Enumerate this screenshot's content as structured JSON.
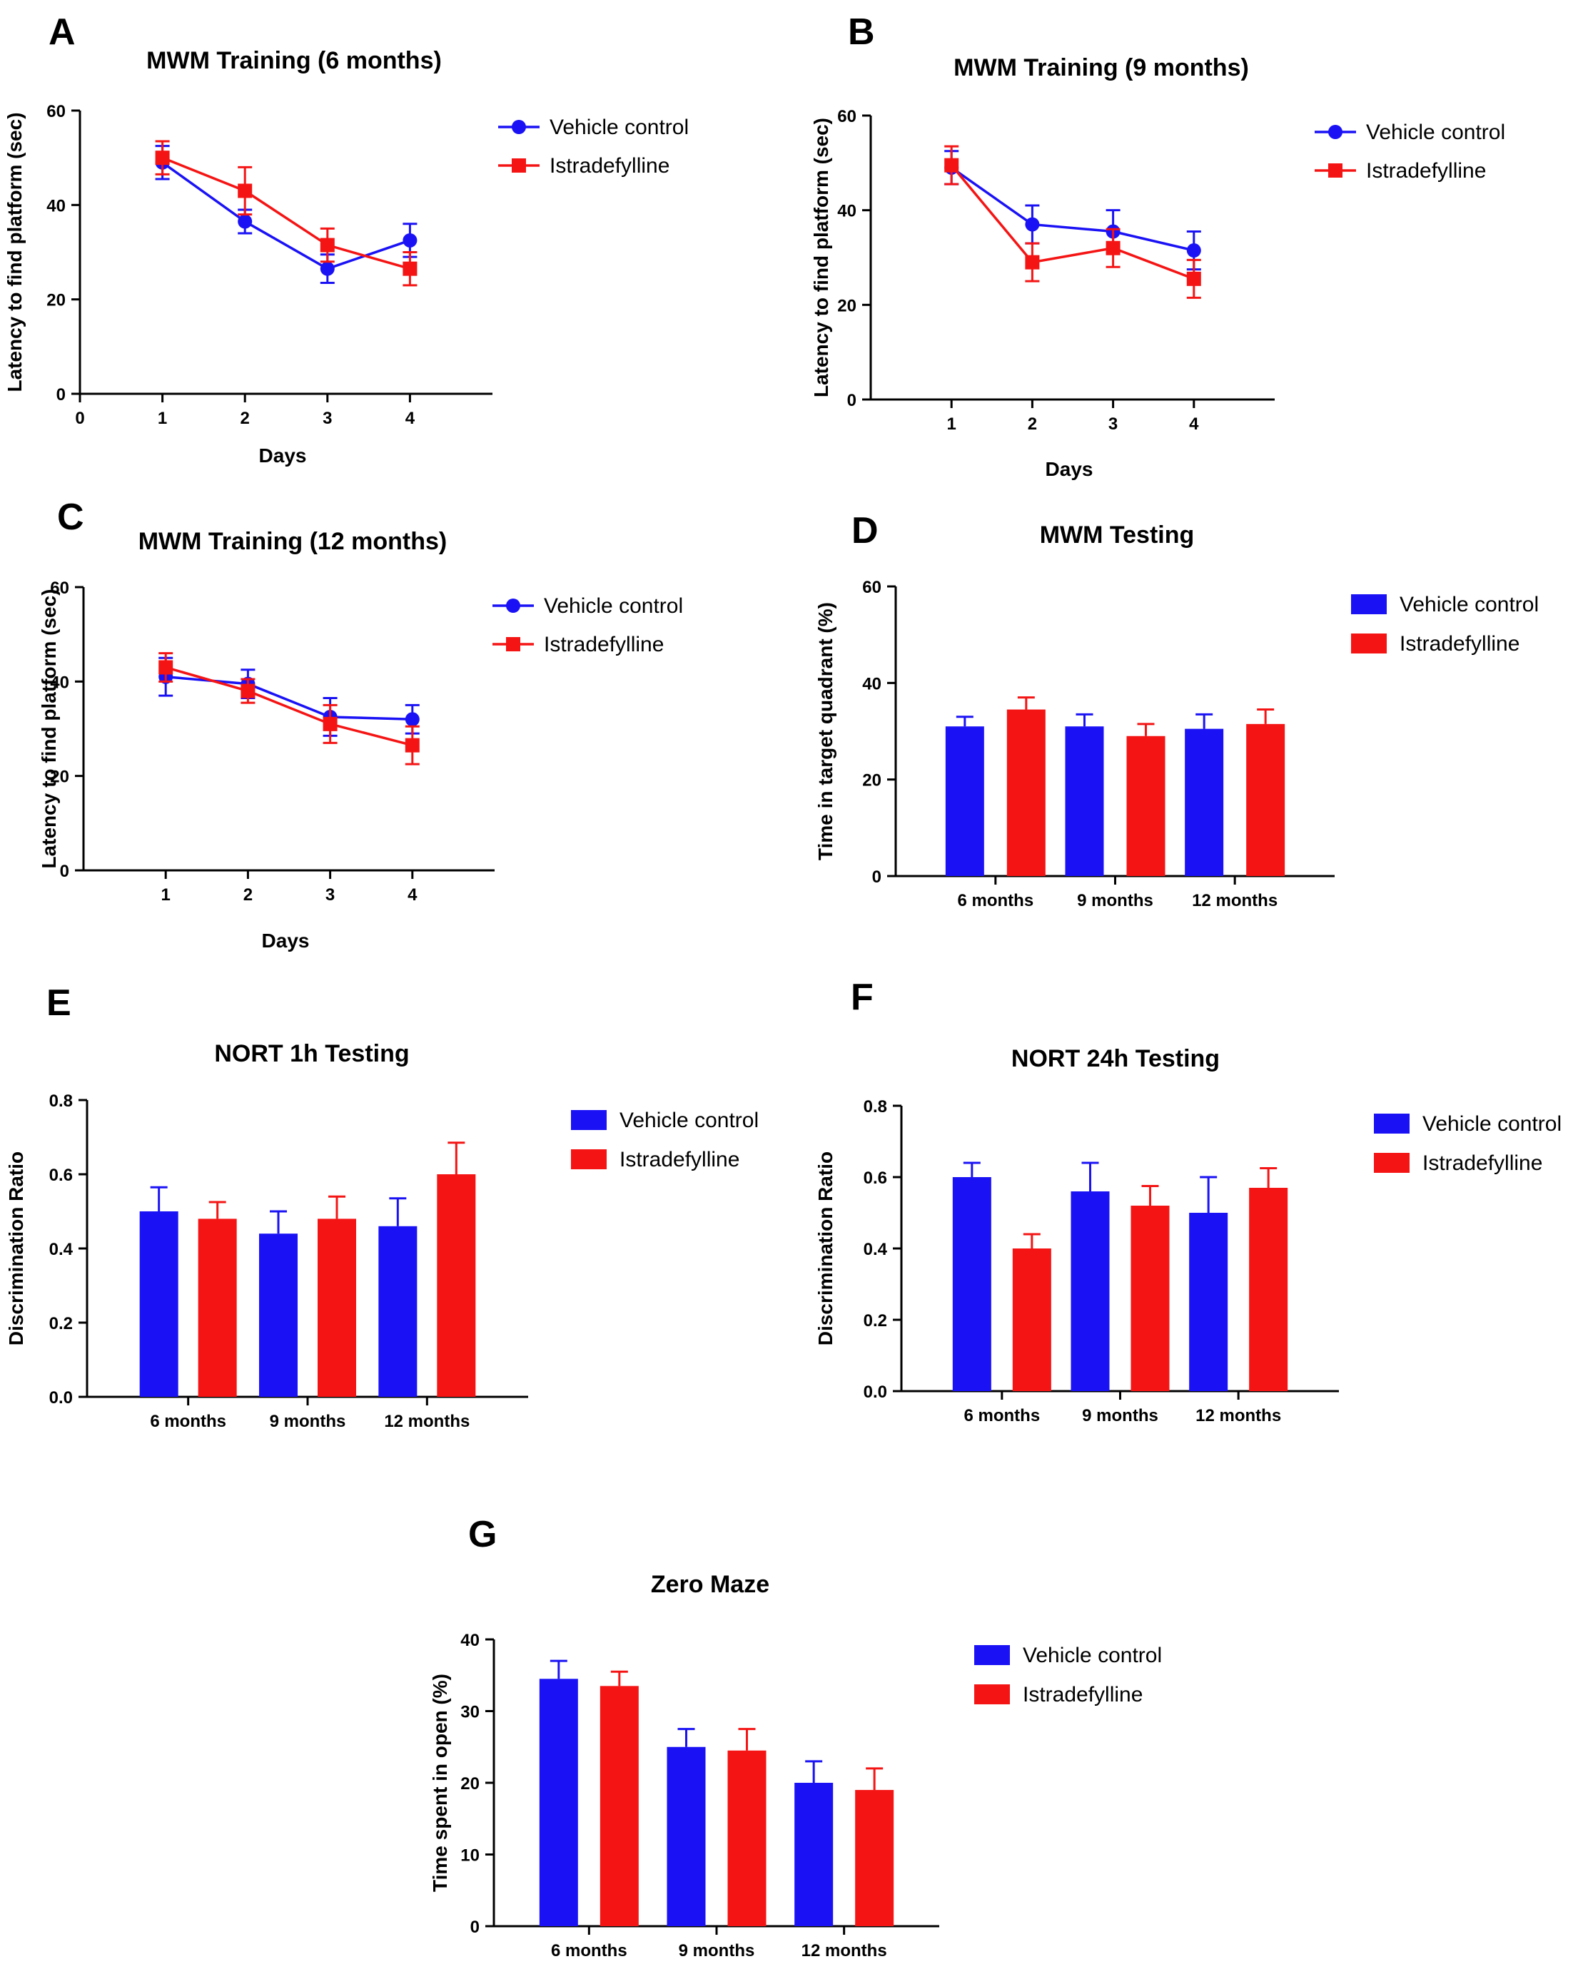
{
  "colors": {
    "vehicle": "#1a12f5",
    "istradefylline": "#f51414",
    "axis": "#000000"
  },
  "chart_data": [
    {
      "id": "A",
      "type": "line",
      "letter": "A",
      "title": "MWM Training (6 months)",
      "xlabel": "Days",
      "ylabel": "Latency to find platform (sec)",
      "x_ticks": [
        "0",
        "1",
        "2",
        "3",
        "4"
      ],
      "x_tick_values": [
        0,
        1,
        2,
        3,
        4
      ],
      "xlim": [
        0,
        5
      ],
      "y_ticks": [
        "0",
        "20",
        "40",
        "60"
      ],
      "ylim": [
        0,
        60
      ],
      "legend": [
        "Vehicle control",
        "Istradefylline"
      ],
      "x": [
        1,
        2,
        3,
        4
      ],
      "series": [
        {
          "name": "Vehicle control",
          "values": [
            49,
            36.5,
            26.5,
            32.5
          ],
          "errors": [
            3.5,
            2.5,
            3,
            3.5
          ]
        },
        {
          "name": "Istradefylline",
          "values": [
            50,
            43,
            31.5,
            26.5
          ],
          "errors": [
            3.5,
            5,
            3.5,
            3.5
          ]
        }
      ]
    },
    {
      "id": "B",
      "type": "line",
      "letter": "B",
      "title": "MWM Training (9 months)",
      "xlabel": "Days",
      "ylabel": "Latency to find platform (sec)",
      "x_ticks": [
        "1",
        "2",
        "3",
        "4"
      ],
      "x_tick_values": [
        1,
        2,
        3,
        4
      ],
      "xlim": [
        0,
        5
      ],
      "y_ticks": [
        "0",
        "20",
        "40",
        "60"
      ],
      "ylim": [
        0,
        60
      ],
      "legend": [
        "Vehicle control",
        "Istradefylline"
      ],
      "x": [
        1,
        2,
        3,
        4
      ],
      "series": [
        {
          "name": "Vehicle control",
          "values": [
            49,
            37,
            35.5,
            31.5
          ],
          "errors": [
            3.5,
            4,
            4.5,
            4
          ]
        },
        {
          "name": "Istradefylline",
          "values": [
            49.5,
            29,
            32,
            25.5
          ],
          "errors": [
            4,
            4,
            4,
            4
          ]
        }
      ]
    },
    {
      "id": "C",
      "type": "line",
      "letter": "C",
      "title": "MWM Training (12 months)",
      "xlabel": "Days",
      "ylabel": "Latency to find platform (sec)",
      "x_ticks": [
        "1",
        "2",
        "3",
        "4"
      ],
      "x_tick_values": [
        1,
        2,
        3,
        4
      ],
      "xlim": [
        0,
        5
      ],
      "y_ticks": [
        "0",
        "20",
        "40",
        "60"
      ],
      "ylim": [
        0,
        60
      ],
      "legend": [
        "Vehicle control",
        "Istradefylline"
      ],
      "x": [
        1,
        2,
        3,
        4
      ],
      "series": [
        {
          "name": "Vehicle control",
          "values": [
            41,
            39.5,
            32.5,
            32
          ],
          "errors": [
            4,
            3,
            4,
            3
          ]
        },
        {
          "name": "Istradefylline",
          "values": [
            43,
            38,
            31,
            26.5
          ],
          "errors": [
            3,
            2.5,
            4,
            4
          ]
        }
      ]
    },
    {
      "id": "D",
      "type": "bar",
      "letter": "D",
      "title": "MWM Testing",
      "xlabel": "",
      "ylabel": "Time in target quadrant (%)",
      "categories": [
        "6 months",
        "9 months",
        "12 months"
      ],
      "y_ticks": [
        "0",
        "20",
        "40",
        "60"
      ],
      "ylim": [
        0,
        60
      ],
      "legend": [
        "Vehicle control",
        "Istradefylline"
      ],
      "series": [
        {
          "name": "Vehicle control",
          "values": [
            31,
            31,
            30.5
          ],
          "errors": [
            2,
            2.5,
            3
          ]
        },
        {
          "name": "Istradefylline",
          "values": [
            34.5,
            29,
            31.5
          ],
          "errors": [
            2.5,
            2.5,
            3
          ]
        }
      ]
    },
    {
      "id": "E",
      "type": "bar",
      "letter": "E",
      "title": "NORT 1h Testing",
      "xlabel": "",
      "ylabel": "Discrimination Ratio",
      "categories": [
        "6 months",
        "9 months",
        "12 months"
      ],
      "y_ticks": [
        "0.0",
        "0.2",
        "0.4",
        "0.6",
        "0.8"
      ],
      "ylim": [
        0,
        0.8
      ],
      "legend": [
        "Vehicle control",
        "Istradefylline"
      ],
      "series": [
        {
          "name": "Vehicle control",
          "values": [
            0.5,
            0.44,
            0.46
          ],
          "errors": [
            0.065,
            0.06,
            0.075
          ]
        },
        {
          "name": "Istradefylline",
          "values": [
            0.48,
            0.48,
            0.6
          ],
          "errors": [
            0.045,
            0.06,
            0.085
          ]
        }
      ]
    },
    {
      "id": "F",
      "type": "bar",
      "letter": "F",
      "title": "NORT 24h Testing",
      "xlabel": "",
      "ylabel": "Discrimination Ratio",
      "categories": [
        "6 months",
        "9 months",
        "12 months"
      ],
      "y_ticks": [
        "0.0",
        "0.2",
        "0.4",
        "0.6",
        "0.8"
      ],
      "ylim": [
        0,
        0.8
      ],
      "legend": [
        "Vehicle control",
        "Istradefylline"
      ],
      "series": [
        {
          "name": "Vehicle control",
          "values": [
            0.6,
            0.56,
            0.5
          ],
          "errors": [
            0.04,
            0.08,
            0.1
          ]
        },
        {
          "name": "Istradefylline",
          "values": [
            0.4,
            0.52,
            0.57
          ],
          "errors": [
            0.04,
            0.055,
            0.055
          ]
        }
      ]
    },
    {
      "id": "G",
      "type": "bar",
      "letter": "G",
      "title": "Zero Maze",
      "xlabel": "",
      "ylabel": "Time spent in open (%)",
      "categories": [
        "6 months",
        "9 months",
        "12 months"
      ],
      "y_ticks": [
        "0",
        "10",
        "20",
        "30",
        "40"
      ],
      "ylim": [
        0,
        40
      ],
      "legend": [
        "Vehicle control",
        "Istradefylline"
      ],
      "series": [
        {
          "name": "Vehicle control",
          "values": [
            34.5,
            25,
            20
          ],
          "errors": [
            2.5,
            2.5,
            3
          ]
        },
        {
          "name": "Istradefylline",
          "values": [
            33.5,
            24.5,
            19
          ],
          "errors": [
            2,
            3,
            3
          ]
        }
      ]
    }
  ]
}
